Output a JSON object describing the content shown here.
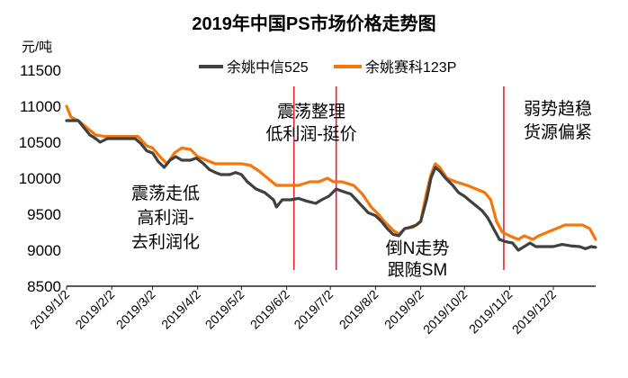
{
  "chart_data": {
    "type": "line",
    "title": "2019年中国PS市场价格走势图",
    "ylabel": "元/吨",
    "xlabel": "",
    "ylim": [
      8500,
      11500
    ],
    "yticks": [
      "11500",
      "11000",
      "10500",
      "10000",
      "9500",
      "9000",
      "8500"
    ],
    "xlim": [
      "2019-01-02",
      "2019-12-31"
    ],
    "xticks": [
      "2019/1/2",
      "2019/2/2",
      "2019/3/2",
      "2019/4/2",
      "2019/5/2",
      "2019/6/2",
      "2019/7/2",
      "2019/8/2",
      "2019/9/2",
      "2019/10/2",
      "2019/11/2",
      "2019/12/2"
    ],
    "legend_position": "top",
    "grid": false,
    "series": [
      {
        "name": "余姚中信525",
        "color": "#404040",
        "points": [
          [
            "2019-01-02",
            10800
          ],
          [
            "2019-01-10",
            10800
          ],
          [
            "2019-01-14",
            10700
          ],
          [
            "2019-01-18",
            10600
          ],
          [
            "2019-01-22",
            10550
          ],
          [
            "2019-01-25",
            10500
          ],
          [
            "2019-01-30",
            10550
          ],
          [
            "2019-02-08",
            10550
          ],
          [
            "2019-02-18",
            10550
          ],
          [
            "2019-02-22",
            10480
          ],
          [
            "2019-02-26",
            10380
          ],
          [
            "2019-03-02",
            10350
          ],
          [
            "2019-03-06",
            10230
          ],
          [
            "2019-03-10",
            10150
          ],
          [
            "2019-03-14",
            10250
          ],
          [
            "2019-03-18",
            10300
          ],
          [
            "2019-03-22",
            10250
          ],
          [
            "2019-03-28",
            10250
          ],
          [
            "2019-04-01",
            10280
          ],
          [
            "2019-04-06",
            10200
          ],
          [
            "2019-04-10",
            10120
          ],
          [
            "2019-04-14",
            10080
          ],
          [
            "2019-04-18",
            10050
          ],
          [
            "2019-04-24",
            10050
          ],
          [
            "2019-04-28",
            10080
          ],
          [
            "2019-05-02",
            10050
          ],
          [
            "2019-05-06",
            9950
          ],
          [
            "2019-05-12",
            9850
          ],
          [
            "2019-05-18",
            9800
          ],
          [
            "2019-05-24",
            9700
          ],
          [
            "2019-05-26",
            9600
          ],
          [
            "2019-05-30",
            9700
          ],
          [
            "2019-06-05",
            9700
          ],
          [
            "2019-06-10",
            9720
          ],
          [
            "2019-06-16",
            9680
          ],
          [
            "2019-06-22",
            9650
          ],
          [
            "2019-06-26",
            9700
          ],
          [
            "2019-07-01",
            9750
          ],
          [
            "2019-07-06",
            9850
          ],
          [
            "2019-07-10",
            9820
          ],
          [
            "2019-07-16",
            9780
          ],
          [
            "2019-07-22",
            9650
          ],
          [
            "2019-07-28",
            9520
          ],
          [
            "2019-08-02",
            9480
          ],
          [
            "2019-08-06",
            9400
          ],
          [
            "2019-08-10",
            9300
          ],
          [
            "2019-08-14",
            9220
          ],
          [
            "2019-08-18",
            9200
          ],
          [
            "2019-08-22",
            9300
          ],
          [
            "2019-08-26",
            9320
          ],
          [
            "2019-08-30",
            9350
          ],
          [
            "2019-09-02",
            9400
          ],
          [
            "2019-09-06",
            9700
          ],
          [
            "2019-09-09",
            10000
          ],
          [
            "2019-09-12",
            10150
          ],
          [
            "2019-09-15",
            10100
          ],
          [
            "2019-09-19",
            10000
          ],
          [
            "2019-09-24",
            9900
          ],
          [
            "2019-09-28",
            9800
          ],
          [
            "2019-10-02",
            9750
          ],
          [
            "2019-10-08",
            9650
          ],
          [
            "2019-10-14",
            9550
          ],
          [
            "2019-10-18",
            9450
          ],
          [
            "2019-10-22",
            9300
          ],
          [
            "2019-10-26",
            9150
          ],
          [
            "2019-10-30",
            9120
          ],
          [
            "2019-11-04",
            9100
          ],
          [
            "2019-11-08",
            9000
          ],
          [
            "2019-11-12",
            9050
          ],
          [
            "2019-11-16",
            9100
          ],
          [
            "2019-11-20",
            9050
          ],
          [
            "2019-11-26",
            9050
          ],
          [
            "2019-12-02",
            9050
          ],
          [
            "2019-12-08",
            9080
          ],
          [
            "2019-12-14",
            9060
          ],
          [
            "2019-12-20",
            9050
          ],
          [
            "2019-12-24",
            9020
          ],
          [
            "2019-12-28",
            9050
          ],
          [
            "2019-12-31",
            9040
          ]
        ]
      },
      {
        "name": "余姚赛科123P",
        "color": "#f7760b",
        "points": [
          [
            "2019-01-02",
            11000
          ],
          [
            "2019-01-05",
            10850
          ],
          [
            "2019-01-10",
            10800
          ],
          [
            "2019-01-16",
            10700
          ],
          [
            "2019-01-22",
            10600
          ],
          [
            "2019-01-28",
            10580
          ],
          [
            "2019-02-03",
            10580
          ],
          [
            "2019-02-12",
            10580
          ],
          [
            "2019-02-20",
            10580
          ],
          [
            "2019-02-26",
            10450
          ],
          [
            "2019-03-02",
            10420
          ],
          [
            "2019-03-07",
            10300
          ],
          [
            "2019-03-12",
            10200
          ],
          [
            "2019-03-17",
            10350
          ],
          [
            "2019-03-22",
            10420
          ],
          [
            "2019-03-28",
            10400
          ],
          [
            "2019-04-02",
            10300
          ],
          [
            "2019-04-08",
            10250
          ],
          [
            "2019-04-14",
            10200
          ],
          [
            "2019-04-20",
            10200
          ],
          [
            "2019-04-26",
            10200
          ],
          [
            "2019-05-02",
            10200
          ],
          [
            "2019-05-08",
            10180
          ],
          [
            "2019-05-14",
            10100
          ],
          [
            "2019-05-20",
            10000
          ],
          [
            "2019-05-26",
            9900
          ],
          [
            "2019-06-02",
            9900
          ],
          [
            "2019-06-10",
            9900
          ],
          [
            "2019-06-18",
            9950
          ],
          [
            "2019-06-24",
            9950
          ],
          [
            "2019-06-30",
            10000
          ],
          [
            "2019-07-04",
            9950
          ],
          [
            "2019-07-10",
            9950
          ],
          [
            "2019-07-18",
            9900
          ],
          [
            "2019-07-24",
            9780
          ],
          [
            "2019-07-30",
            9600
          ],
          [
            "2019-08-04",
            9500
          ],
          [
            "2019-08-08",
            9400
          ],
          [
            "2019-08-14",
            9280
          ],
          [
            "2019-08-18",
            9220
          ],
          [
            "2019-08-22",
            9300
          ],
          [
            "2019-08-28",
            9320
          ],
          [
            "2019-09-02",
            9400
          ],
          [
            "2019-09-06",
            9800
          ],
          [
            "2019-09-09",
            10050
          ],
          [
            "2019-09-12",
            10200
          ],
          [
            "2019-09-15",
            10150
          ],
          [
            "2019-09-20",
            10000
          ],
          [
            "2019-09-26",
            9950
          ],
          [
            "2019-10-04",
            9900
          ],
          [
            "2019-10-10",
            9850
          ],
          [
            "2019-10-16",
            9800
          ],
          [
            "2019-10-20",
            9700
          ],
          [
            "2019-10-24",
            9400
          ],
          [
            "2019-10-28",
            9250
          ],
          [
            "2019-11-02",
            9200
          ],
          [
            "2019-11-08",
            9150
          ],
          [
            "2019-11-12",
            9200
          ],
          [
            "2019-11-18",
            9150
          ],
          [
            "2019-11-22",
            9200
          ],
          [
            "2019-11-28",
            9250
          ],
          [
            "2019-12-04",
            9300
          ],
          [
            "2019-12-10",
            9350
          ],
          [
            "2019-12-16",
            9350
          ],
          [
            "2019-12-22",
            9350
          ],
          [
            "2019-12-27",
            9300
          ],
          [
            "2019-12-31",
            9150
          ]
        ]
      }
    ],
    "markers": [
      {
        "date": "2019-06-07",
        "color": "#e8222e"
      },
      {
        "date": "2019-07-06",
        "color": "#e8222e"
      },
      {
        "date": "2019-10-29",
        "color": "#e8222e"
      }
    ],
    "annotations": [
      {
        "lines": [
          "震荡整理",
          "低利润-挺价"
        ]
      },
      {
        "lines": [
          "弱势趋稳",
          "货源偏紧"
        ]
      },
      {
        "lines": [
          "震荡走低",
          "高利润-",
          "去利润化"
        ]
      },
      {
        "lines": [
          "倒N走势",
          "跟随SM"
        ]
      }
    ]
  }
}
